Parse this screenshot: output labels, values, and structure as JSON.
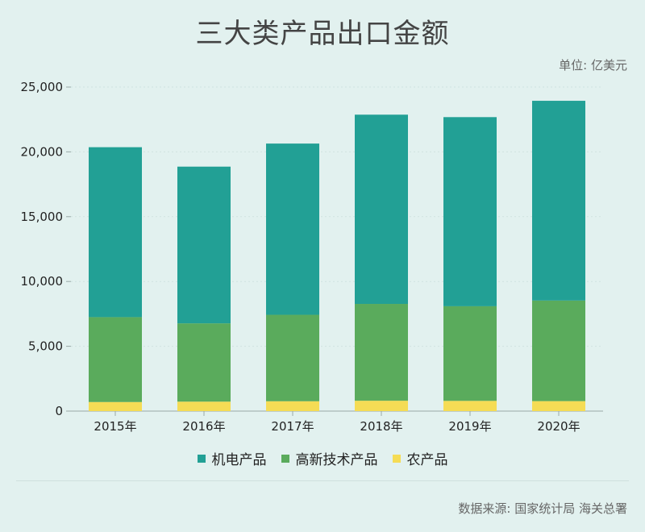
{
  "header": {
    "title": "三大类产品出口金额",
    "unit": "单位: 亿美元"
  },
  "footer": {
    "source": "数据来源: 国家统计局 海关总署"
  },
  "colors": {
    "mechanical": "#22a095",
    "hightech": "#5aab5c",
    "agricultural": "#f5dc55",
    "grid": "#cfe3e0",
    "axis": "#9aa9a7"
  },
  "chart_data": {
    "type": "bar",
    "stacked": true,
    "title": "三大类产品出口金额",
    "ylabel": "单位: 亿美元",
    "xlabel": "",
    "categories": [
      "2015年",
      "2016年",
      "2017年",
      "2018年",
      "2019年",
      "2020年"
    ],
    "ylim": [
      0,
      25000
    ],
    "yticks": [
      0,
      5000,
      10000,
      15000,
      20000,
      25000
    ],
    "ytick_labels": [
      "0",
      "5,000",
      "10,000",
      "15,000",
      "20,000",
      "25,000"
    ],
    "grid": true,
    "legend_position": "bottom",
    "series": [
      {
        "name": "农产品",
        "key": "agricultural",
        "values": [
          700,
          730,
          760,
          800,
          790,
          770
        ]
      },
      {
        "name": "高新技术产品",
        "key": "hightech",
        "values": [
          6550,
          6040,
          6670,
          7470,
          7300,
          7760
        ]
      },
      {
        "name": "机电产品",
        "key": "mechanical",
        "values": [
          13110,
          12090,
          13210,
          14600,
          14590,
          15410
        ]
      }
    ],
    "legend_order": [
      "机电产品",
      "高新技术产品",
      "农产品"
    ]
  }
}
